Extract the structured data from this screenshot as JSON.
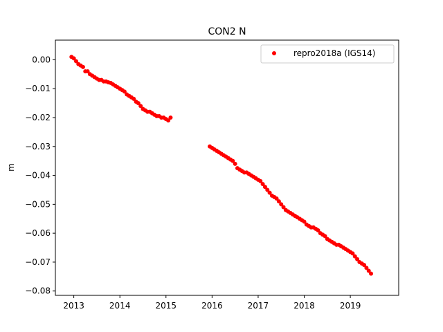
{
  "chart_data": {
    "type": "scatter",
    "title": "CON2 N",
    "xlabel": "",
    "ylabel": "m",
    "xlim": [
      2012.6,
      2020.05
    ],
    "ylim": [
      -0.0815,
      0.0068
    ],
    "grid": false,
    "legend_position": "top-right",
    "x_ticks": [
      {
        "value": 2013,
        "label": "2013"
      },
      {
        "value": 2014,
        "label": "2014"
      },
      {
        "value": 2015,
        "label": "2015"
      },
      {
        "value": 2016,
        "label": "2016"
      },
      {
        "value": 2017,
        "label": "2017"
      },
      {
        "value": 2018,
        "label": "2018"
      },
      {
        "value": 2019,
        "label": "2019"
      }
    ],
    "y_ticks": [
      {
        "value": 0.0,
        "label": "0.00"
      },
      {
        "value": -0.01,
        "label": "−0.01"
      },
      {
        "value": -0.02,
        "label": "−0.02"
      },
      {
        "value": -0.03,
        "label": "−0.03"
      },
      {
        "value": -0.04,
        "label": "−0.04"
      },
      {
        "value": -0.05,
        "label": "−0.05"
      },
      {
        "value": -0.06,
        "label": "−0.06"
      },
      {
        "value": -0.07,
        "label": "−0.07"
      },
      {
        "value": -0.08,
        "label": "−0.08"
      }
    ],
    "series": [
      {
        "name": "repro2018a (IGS14)",
        "color": "#ff0000",
        "marker": "circle",
        "x": [
          2012.95,
          2013.0,
          2013.05,
          2013.1,
          2013.15,
          2013.2,
          2013.25,
          2013.3,
          2013.35,
          2013.4,
          2013.45,
          2013.5,
          2013.55,
          2013.6,
          2013.65,
          2013.7,
          2013.75,
          2013.8,
          2013.85,
          2013.9,
          2013.95,
          2014.0,
          2014.05,
          2014.1,
          2014.15,
          2014.2,
          2014.25,
          2014.3,
          2014.35,
          2014.4,
          2014.45,
          2014.5,
          2014.55,
          2014.6,
          2014.65,
          2014.7,
          2014.75,
          2014.8,
          2014.85,
          2014.9,
          2014.95,
          2015.0,
          2015.05,
          2015.1,
          2015.95,
          2016.0,
          2016.05,
          2016.1,
          2016.15,
          2016.2,
          2016.25,
          2016.3,
          2016.35,
          2016.4,
          2016.45,
          2016.5,
          2016.55,
          2016.6,
          2016.65,
          2016.7,
          2016.75,
          2016.8,
          2016.85,
          2016.9,
          2016.95,
          2017.0,
          2017.05,
          2017.1,
          2017.15,
          2017.2,
          2017.25,
          2017.3,
          2017.35,
          2017.4,
          2017.45,
          2017.5,
          2017.55,
          2017.6,
          2017.65,
          2017.7,
          2017.75,
          2017.8,
          2017.85,
          2017.9,
          2017.95,
          2018.0,
          2018.05,
          2018.1,
          2018.15,
          2018.2,
          2018.25,
          2018.3,
          2018.35,
          2018.4,
          2018.45,
          2018.5,
          2018.55,
          2018.6,
          2018.65,
          2018.7,
          2018.75,
          2018.8,
          2018.85,
          2018.9,
          2018.95,
          2019.0,
          2019.05,
          2019.1,
          2019.15,
          2019.2,
          2019.25,
          2019.3,
          2019.35,
          2019.4,
          2019.45
        ],
        "y": [
          0.001,
          0.0005,
          -0.0005,
          -0.0015,
          -0.002,
          -0.0025,
          -0.004,
          -0.004,
          -0.005,
          -0.0055,
          -0.006,
          -0.0065,
          -0.007,
          -0.007,
          -0.0075,
          -0.0075,
          -0.0078,
          -0.008,
          -0.0085,
          -0.009,
          -0.0095,
          -0.01,
          -0.0105,
          -0.011,
          -0.012,
          -0.0125,
          -0.013,
          -0.0135,
          -0.0145,
          -0.015,
          -0.016,
          -0.017,
          -0.0175,
          -0.018,
          -0.018,
          -0.0185,
          -0.019,
          -0.0195,
          -0.0195,
          -0.02,
          -0.02,
          -0.0205,
          -0.021,
          -0.02,
          -0.03,
          -0.0305,
          -0.031,
          -0.0315,
          -0.032,
          -0.0325,
          -0.033,
          -0.0335,
          -0.034,
          -0.0345,
          -0.035,
          -0.036,
          -0.0375,
          -0.038,
          -0.0385,
          -0.039,
          -0.039,
          -0.0395,
          -0.04,
          -0.0405,
          -0.041,
          -0.0415,
          -0.042,
          -0.043,
          -0.044,
          -0.045,
          -0.046,
          -0.047,
          -0.0475,
          -0.048,
          -0.049,
          -0.05,
          -0.051,
          -0.052,
          -0.0525,
          -0.053,
          -0.0535,
          -0.054,
          -0.0545,
          -0.055,
          -0.0555,
          -0.056,
          -0.057,
          -0.0575,
          -0.058,
          -0.058,
          -0.0585,
          -0.059,
          -0.06,
          -0.0605,
          -0.061,
          -0.062,
          -0.0625,
          -0.063,
          -0.0635,
          -0.064,
          -0.064,
          -0.0645,
          -0.065,
          -0.0655,
          -0.066,
          -0.0665,
          -0.067,
          -0.068,
          -0.069,
          -0.07,
          -0.0705,
          -0.071,
          -0.072,
          -0.073,
          -0.074
        ]
      }
    ]
  }
}
